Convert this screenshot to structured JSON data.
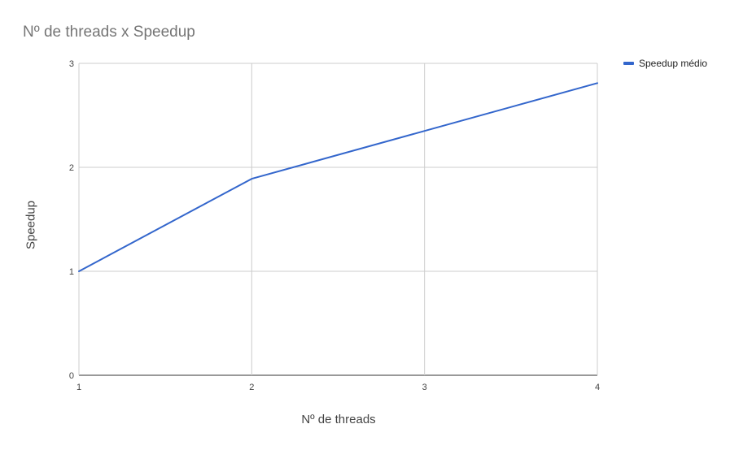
{
  "chart_data": {
    "type": "line",
    "title": "Nº de threads x Speedup",
    "xlabel": "Nº de threads",
    "ylabel": "Speedup",
    "x": [
      1,
      2,
      3,
      4
    ],
    "xlim": [
      1,
      4
    ],
    "ylim": [
      0,
      3
    ],
    "x_ticks": [
      "1",
      "2",
      "3",
      "4"
    ],
    "y_ticks": [
      "0",
      "1",
      "2",
      "3"
    ],
    "grid": true,
    "legend_position": "right",
    "series": [
      {
        "name": "Speedup médio",
        "values": [
          1.0,
          1.89,
          2.35,
          2.81
        ],
        "color": "#3366cc"
      }
    ]
  }
}
